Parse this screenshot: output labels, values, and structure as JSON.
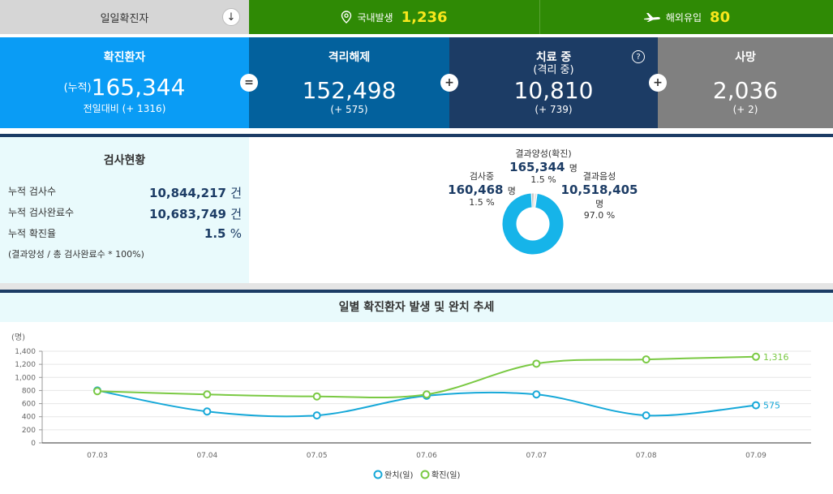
{
  "topbar": {
    "daily_label": "일일확진자",
    "domestic_label": "국내발생",
    "domestic_value": "1,236",
    "overseas_label": "해외유입",
    "overseas_value": "80",
    "icons": [
      "arrow-down-icon",
      "location-pin-icon",
      "airplane-icon"
    ]
  },
  "stats": {
    "confirmed": {
      "title": "확진환자",
      "prefix": "(누적)",
      "value": "165,344",
      "sub": "전일대비 (+ 1316)",
      "color": "#0a9cf5"
    },
    "released": {
      "title": "격리해제",
      "value": "152,498",
      "sub": "(+ 575)",
      "color": "#03619d"
    },
    "treating": {
      "title": "치료 중",
      "subtitle": "(격리 중)",
      "value": "10,810",
      "sub": "(+ 739)",
      "help": "?",
      "color": "#1c3c65"
    },
    "deaths": {
      "title": "사망",
      "value": "2,036",
      "sub": "(+ 2)",
      "color": "#808080"
    },
    "ops": [
      "=",
      "+",
      "+"
    ]
  },
  "tests": {
    "title": "검사현황",
    "rows": [
      {
        "label": "누적 검사수",
        "value": "10,844,217",
        "unit": "건"
      },
      {
        "label": "누적 검사완료수",
        "value": "10,683,749",
        "unit": "건"
      },
      {
        "label": "누적 확진율",
        "value": "1.5",
        "unit": "%"
      }
    ],
    "note": "(결과양성 / 총 검사완료수 * 100%)"
  },
  "donut": {
    "positive": {
      "label": "결과양성(확진)",
      "value": "165,344",
      "unit": "명",
      "pct": "1.5 %"
    },
    "testing": {
      "label": "검사중",
      "value": "160,468",
      "unit": "명",
      "pct": "1.5 %"
    },
    "negative": {
      "label": "결과음성",
      "value": "10,518,405",
      "unit": "명",
      "pct": "97.0 %"
    },
    "shares": [
      1.5,
      1.5,
      97.0
    ],
    "colors": [
      "#c8c8c8",
      "#e6e6e6",
      "#16b4e9"
    ]
  },
  "chart_title": "일별 확진환자 발생 및 완치 추세",
  "chart_data": {
    "type": "line",
    "unit_label": "(명)",
    "categories": [
      "07.03",
      "07.04",
      "07.05",
      "07.06",
      "07.07",
      "07.08",
      "07.09"
    ],
    "ylim": [
      0,
      1400
    ],
    "yticks": [
      "0",
      "200",
      "400",
      "600",
      "800",
      "1,000",
      "1,200",
      "1,400"
    ],
    "ytick_values": [
      0,
      200,
      400,
      600,
      800,
      1000,
      1200,
      1400
    ],
    "series": [
      {
        "name": "완치(일)",
        "color": "#16a8d8",
        "values": [
          800,
          480,
          420,
          720,
          740,
          420,
          575
        ],
        "end_label": "575"
      },
      {
        "name": "확진(일)",
        "color": "#7ac943",
        "values": [
          790,
          740,
          710,
          740,
          1210,
          1275,
          1316
        ],
        "end_label": "1,316"
      }
    ],
    "legend": "bottom-center",
    "grid": true
  }
}
